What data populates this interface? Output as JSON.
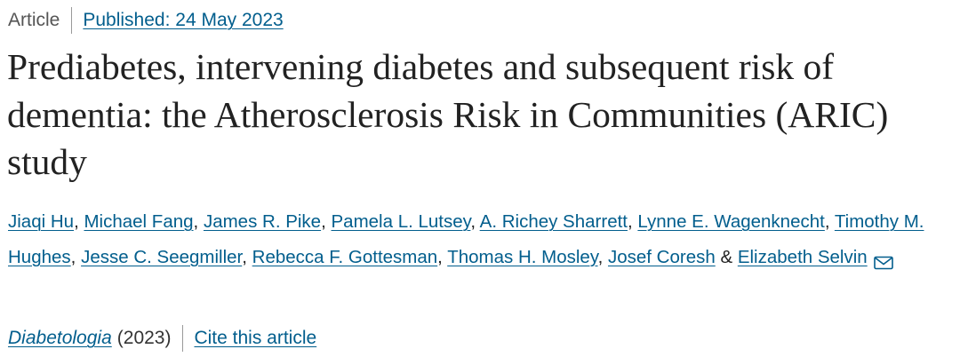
{
  "header": {
    "article_type": "Article",
    "published": "Published: 24 May 2023"
  },
  "title": "Prediabetes, intervening diabetes and subsequent risk of dementia: the Atherosclerosis Risk in Communities (ARIC) study",
  "authors": {
    "names": [
      "Jiaqi Hu",
      "Michael Fang",
      "James R. Pike",
      "Pamela L. Lutsey",
      "A. Richey Sharrett",
      "Lynne E. Wagenknecht",
      "Timothy M. Hughes",
      "Jesse C. Seegmiller",
      "Rebecca F. Gottesman",
      "Thomas H. Mosley",
      "Josef Coresh",
      "Elizabeth Selvin"
    ],
    "separator": ", ",
    "last_separator": " & ",
    "contact_icon": "mail-icon"
  },
  "citation": {
    "journal": "Diabetologia",
    "year": "(2023)",
    "cite_label": "Cite this article"
  },
  "colors": {
    "link": "#025e8d",
    "text": "#222222",
    "muted": "#555555"
  }
}
